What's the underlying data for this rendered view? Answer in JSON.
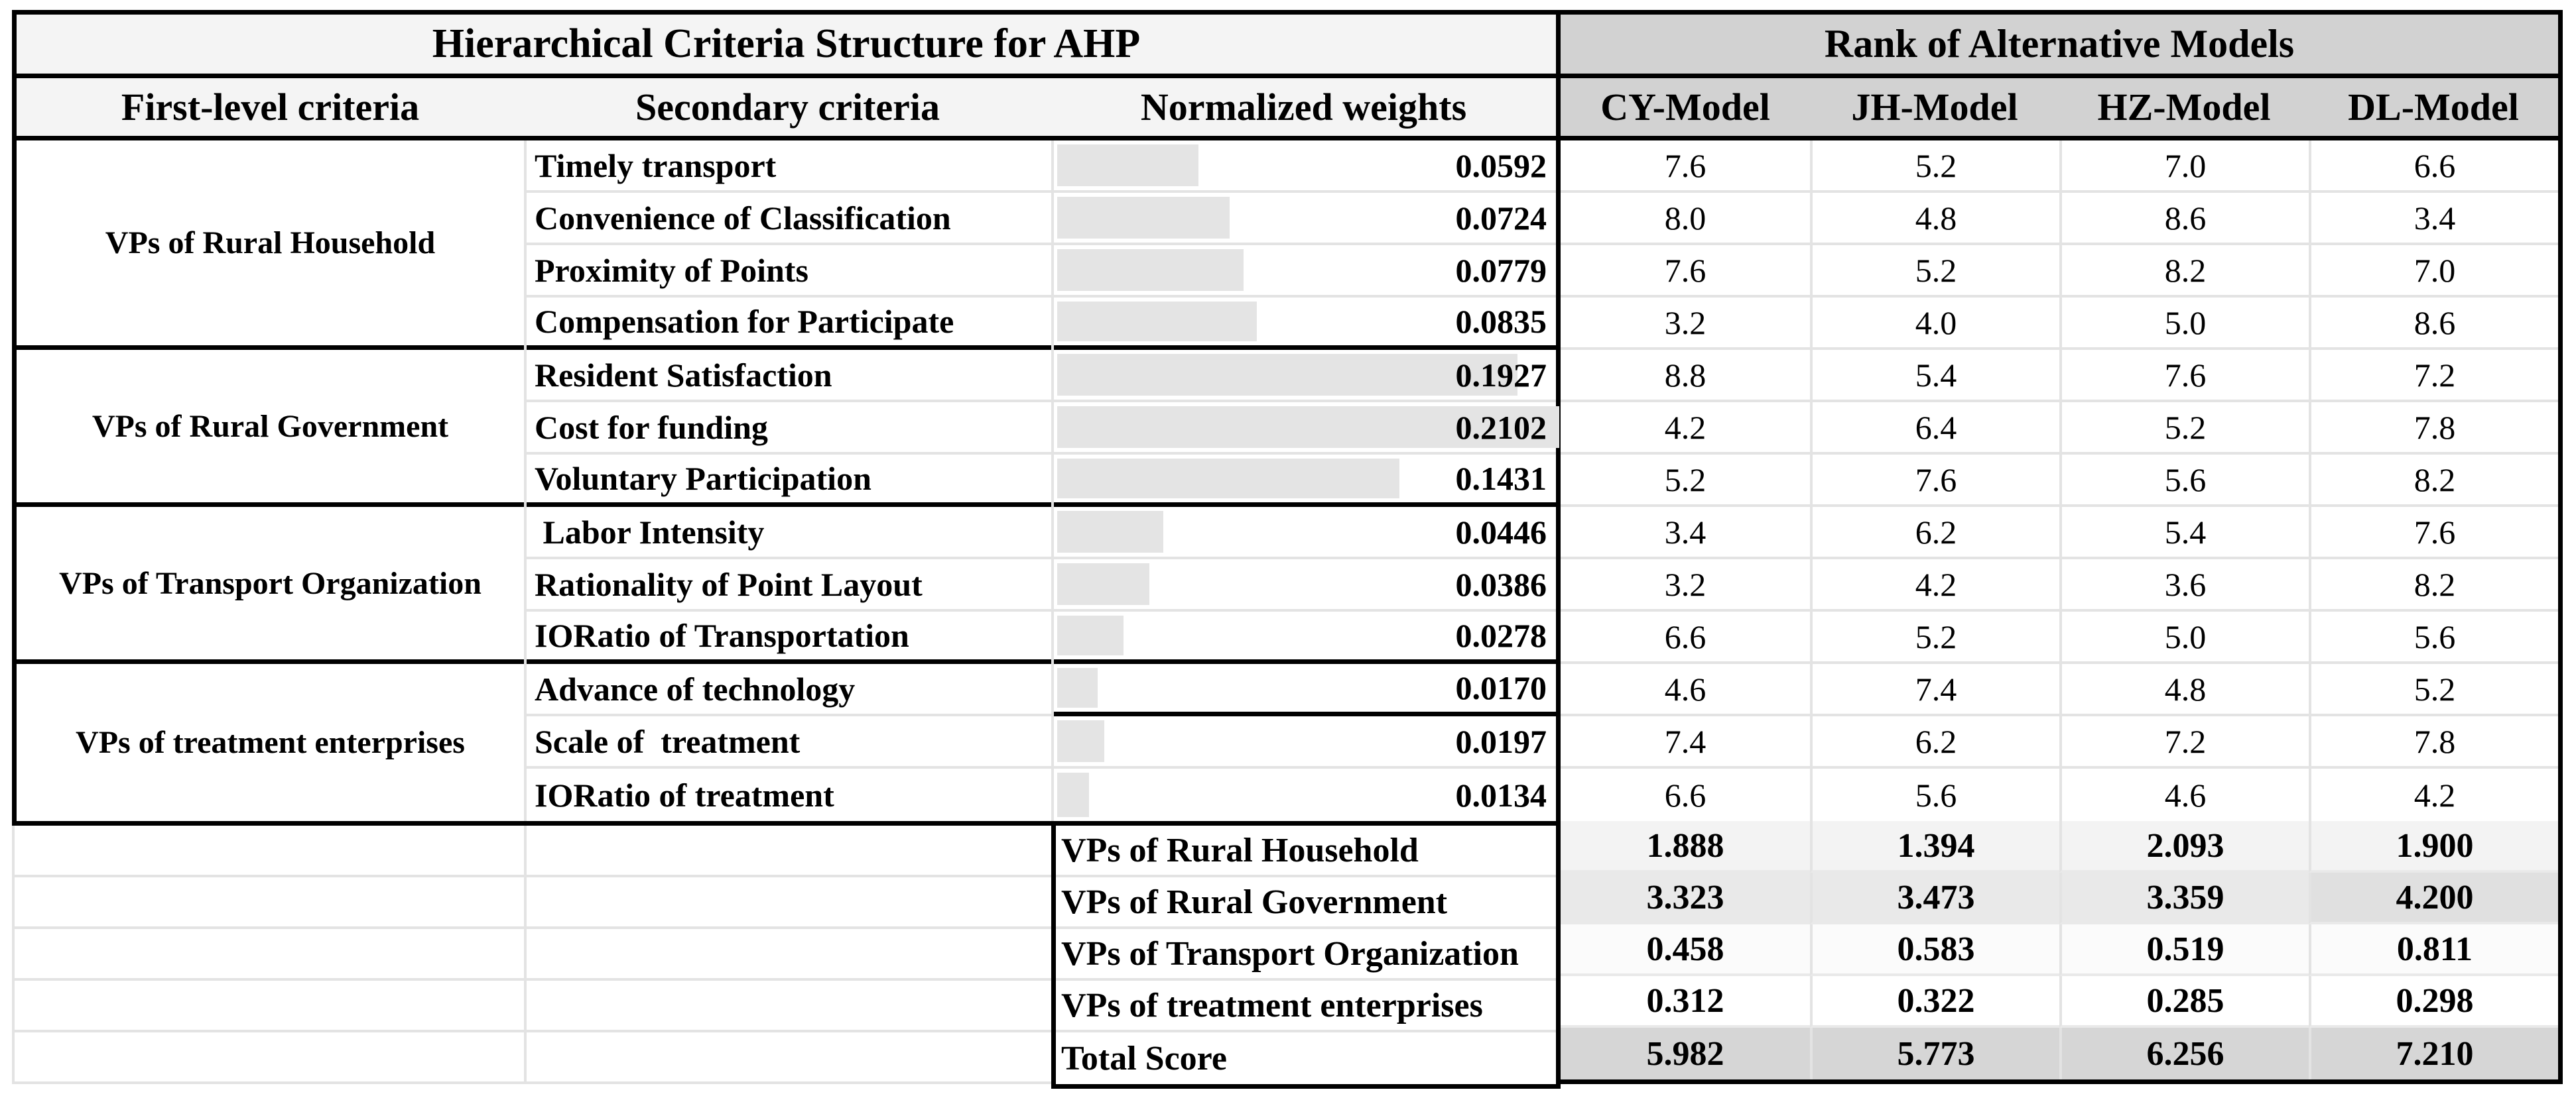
{
  "left_table": {
    "title": "Hierarchical Criteria Structure for AHP",
    "headers": [
      "First-level criteria",
      "Secondary criteria",
      "Normalized weights"
    ]
  },
  "right_table": {
    "title": "Rank of Alternative Models",
    "models": [
      "CY-Model",
      "JH-Model",
      "HZ-Model",
      "DL-Model"
    ]
  },
  "groups": [
    {
      "label": "VPs of Rural Household",
      "rowspan": 4
    },
    {
      "label": "VPs of Rural Government",
      "rowspan": 3
    },
    {
      "label": "VPs of Transport Organization",
      "rowspan": 3
    },
    {
      "label": "VPs of treatment enterprises",
      "rowspan": 3
    }
  ],
  "rows": [
    {
      "criterion": "Timely transport",
      "weight": "0.0592",
      "bar_pct": 28.2,
      "scores": [
        "7.6",
        "5.2",
        "7.0",
        "6.6"
      ]
    },
    {
      "criterion": "Convenience of Classification",
      "weight": "0.0724",
      "bar_pct": 34.4,
      "scores": [
        "8.0",
        "4.8",
        "8.6",
        "3.4"
      ]
    },
    {
      "criterion": "Proximity of Points",
      "weight": "0.0779",
      "bar_pct": 37.1,
      "scores": [
        "7.6",
        "5.2",
        "8.2",
        "7.0"
      ]
    },
    {
      "criterion": "Compensation for Participate",
      "weight": "0.0835",
      "bar_pct": 39.7,
      "scores": [
        "3.2",
        "4.0",
        "5.0",
        "8.6"
      ]
    },
    {
      "criterion": "Resident Satisfaction",
      "weight": "0.1927",
      "bar_pct": 91.7,
      "scores": [
        "8.8",
        "5.4",
        "7.6",
        "7.2"
      ]
    },
    {
      "criterion": "Cost for funding",
      "weight": "0.2102",
      "bar_pct": 100,
      "scores": [
        "4.2",
        "6.4",
        "5.2",
        "7.8"
      ]
    },
    {
      "criterion": "Voluntary Participation",
      "weight": "0.1431",
      "bar_pct": 68.1,
      "scores": [
        "5.2",
        "7.6",
        "5.6",
        "8.2"
      ]
    },
    {
      "criterion": " Labor Intensity",
      "weight": "0.0446",
      "bar_pct": 21.2,
      "scores": [
        "3.4",
        "6.2",
        "5.4",
        "7.6"
      ]
    },
    {
      "criterion": "Rationality of Point Layout",
      "weight": "0.0386",
      "bar_pct": 18.4,
      "scores": [
        "3.2",
        "4.2",
        "3.6",
        "8.2"
      ]
    },
    {
      "criterion": "IORatio of Transportation",
      "weight": "0.0278",
      "bar_pct": 13.2,
      "scores": [
        "6.6",
        "5.2",
        "5.0",
        "5.6"
      ]
    },
    {
      "criterion": "Advance of technology",
      "weight": "0.0170",
      "bar_pct": 8.1,
      "scores": [
        "4.6",
        "7.4",
        "4.8",
        "5.2"
      ]
    },
    {
      "criterion": "Scale of  treatment",
      "weight": "0.0197",
      "bar_pct": 9.4,
      "scores": [
        "7.4",
        "6.2",
        "7.2",
        "7.8"
      ]
    },
    {
      "criterion": "IORatio of treatment",
      "weight": "0.0134",
      "bar_pct": 6.4,
      "scores": [
        "6.6",
        "5.6",
        "4.6",
        "4.2"
      ]
    }
  ],
  "summary": [
    {
      "label": "VPs of Rural Household",
      "values": [
        "1.888",
        "1.394",
        "2.093",
        "1.900"
      ],
      "bg": "#f3f3f3"
    },
    {
      "label": "VPs of Rural Government",
      "values": [
        "3.323",
        "3.473",
        "3.359",
        "4.200"
      ],
      "bg": "#e9e9e9",
      "bg_dl": "#e0e0e0"
    },
    {
      "label": "VPs of Transport Organization",
      "values": [
        "0.458",
        "0.583",
        "0.519",
        "0.811"
      ],
      "bg": "#fbfbfb"
    },
    {
      "label": "VPs of treatment enterprises",
      "values": [
        "0.312",
        "0.322",
        "0.285",
        "0.298"
      ],
      "bg": "#ffffff"
    },
    {
      "label": "Total Score",
      "values": [
        "5.982",
        "5.773",
        "6.256",
        "7.210"
      ],
      "bg": "#d6d6d6"
    }
  ],
  "colors": {
    "grid_line": "#e3e3e3",
    "data_bar": "#e4e4e4",
    "left_header_bg": "#f4f4f4",
    "right_header_bg": "#d2d2d2",
    "border": "#000000"
  }
}
